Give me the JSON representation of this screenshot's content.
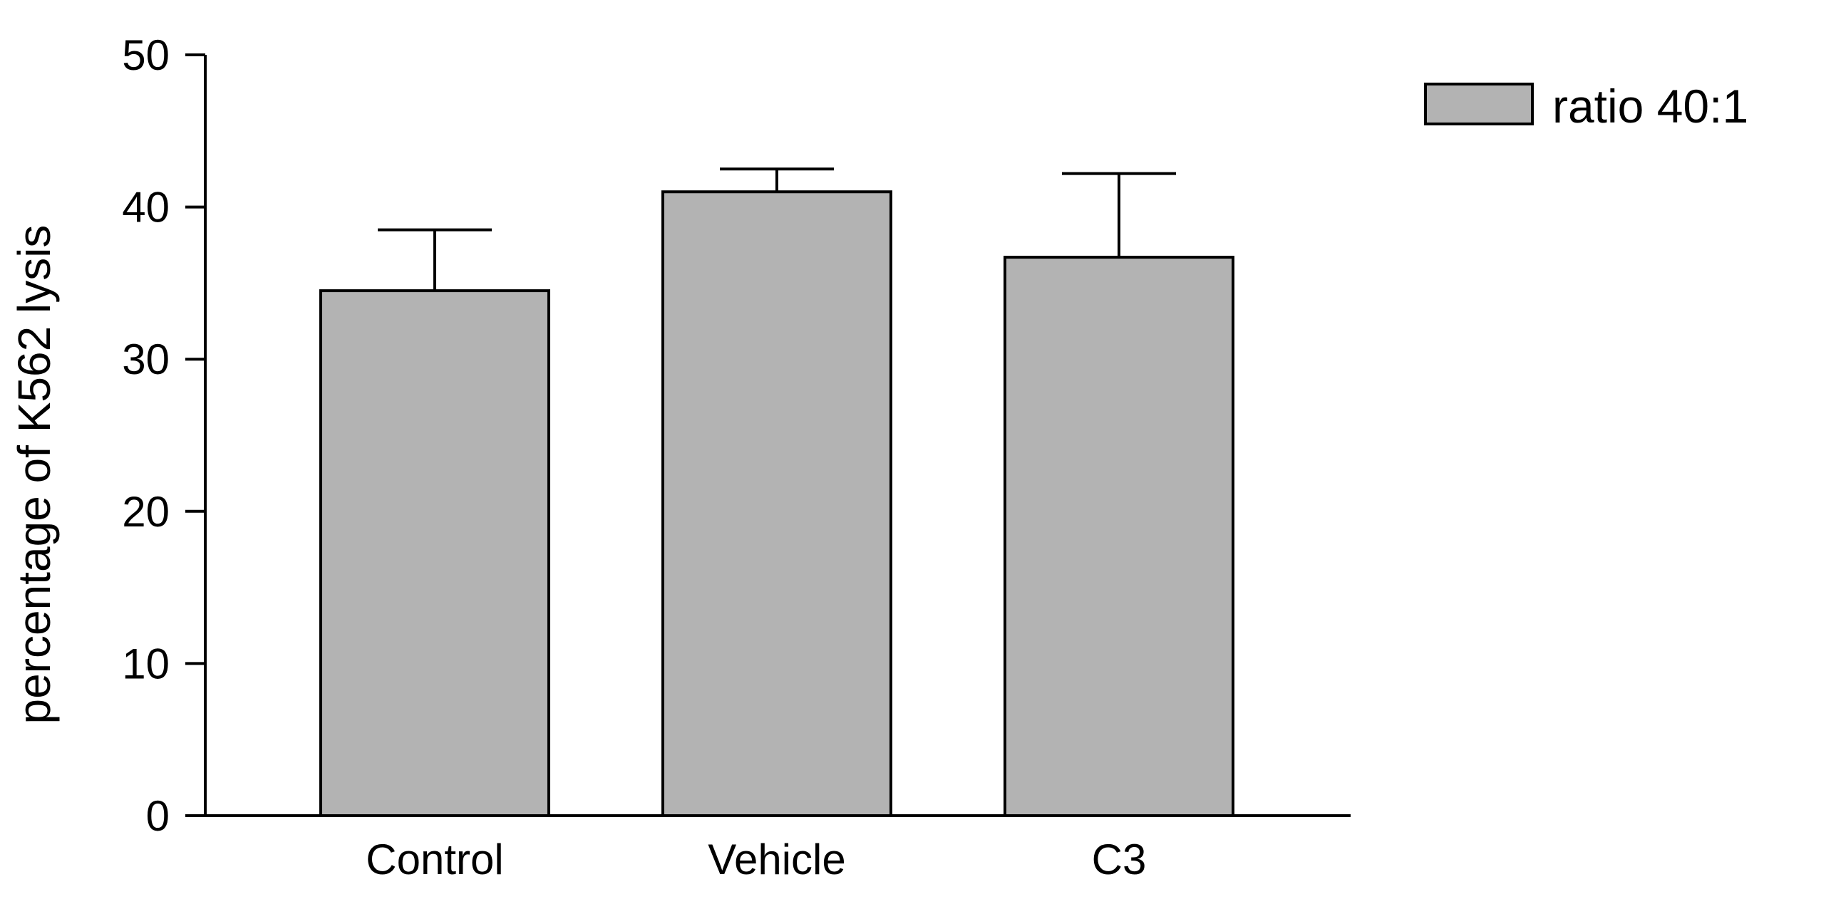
{
  "chart_data": {
    "type": "bar",
    "title": "",
    "xlabel": "",
    "ylabel": "percentage of K562 lysis",
    "categories": [
      "Control",
      "Vehicle",
      "C3"
    ],
    "series": [
      {
        "name": "ratio 40:1",
        "values": [
          34.5,
          41.0,
          36.7
        ],
        "error_upper": [
          38.5,
          42.5,
          42.2
        ],
        "color": "#b3b3b3"
      }
    ],
    "ylim": [
      0,
      50
    ],
    "yticks": [
      0,
      10,
      20,
      30,
      40,
      50
    ],
    "yticklabels": [
      "0",
      "10",
      "20",
      "30",
      "40",
      "50"
    ],
    "grid": false,
    "legend_position": "top-right",
    "colors": {
      "bar_fill": "#b3b3b3",
      "bar_stroke": "#000000",
      "axis": "#000000",
      "background": "#ffffff"
    }
  }
}
